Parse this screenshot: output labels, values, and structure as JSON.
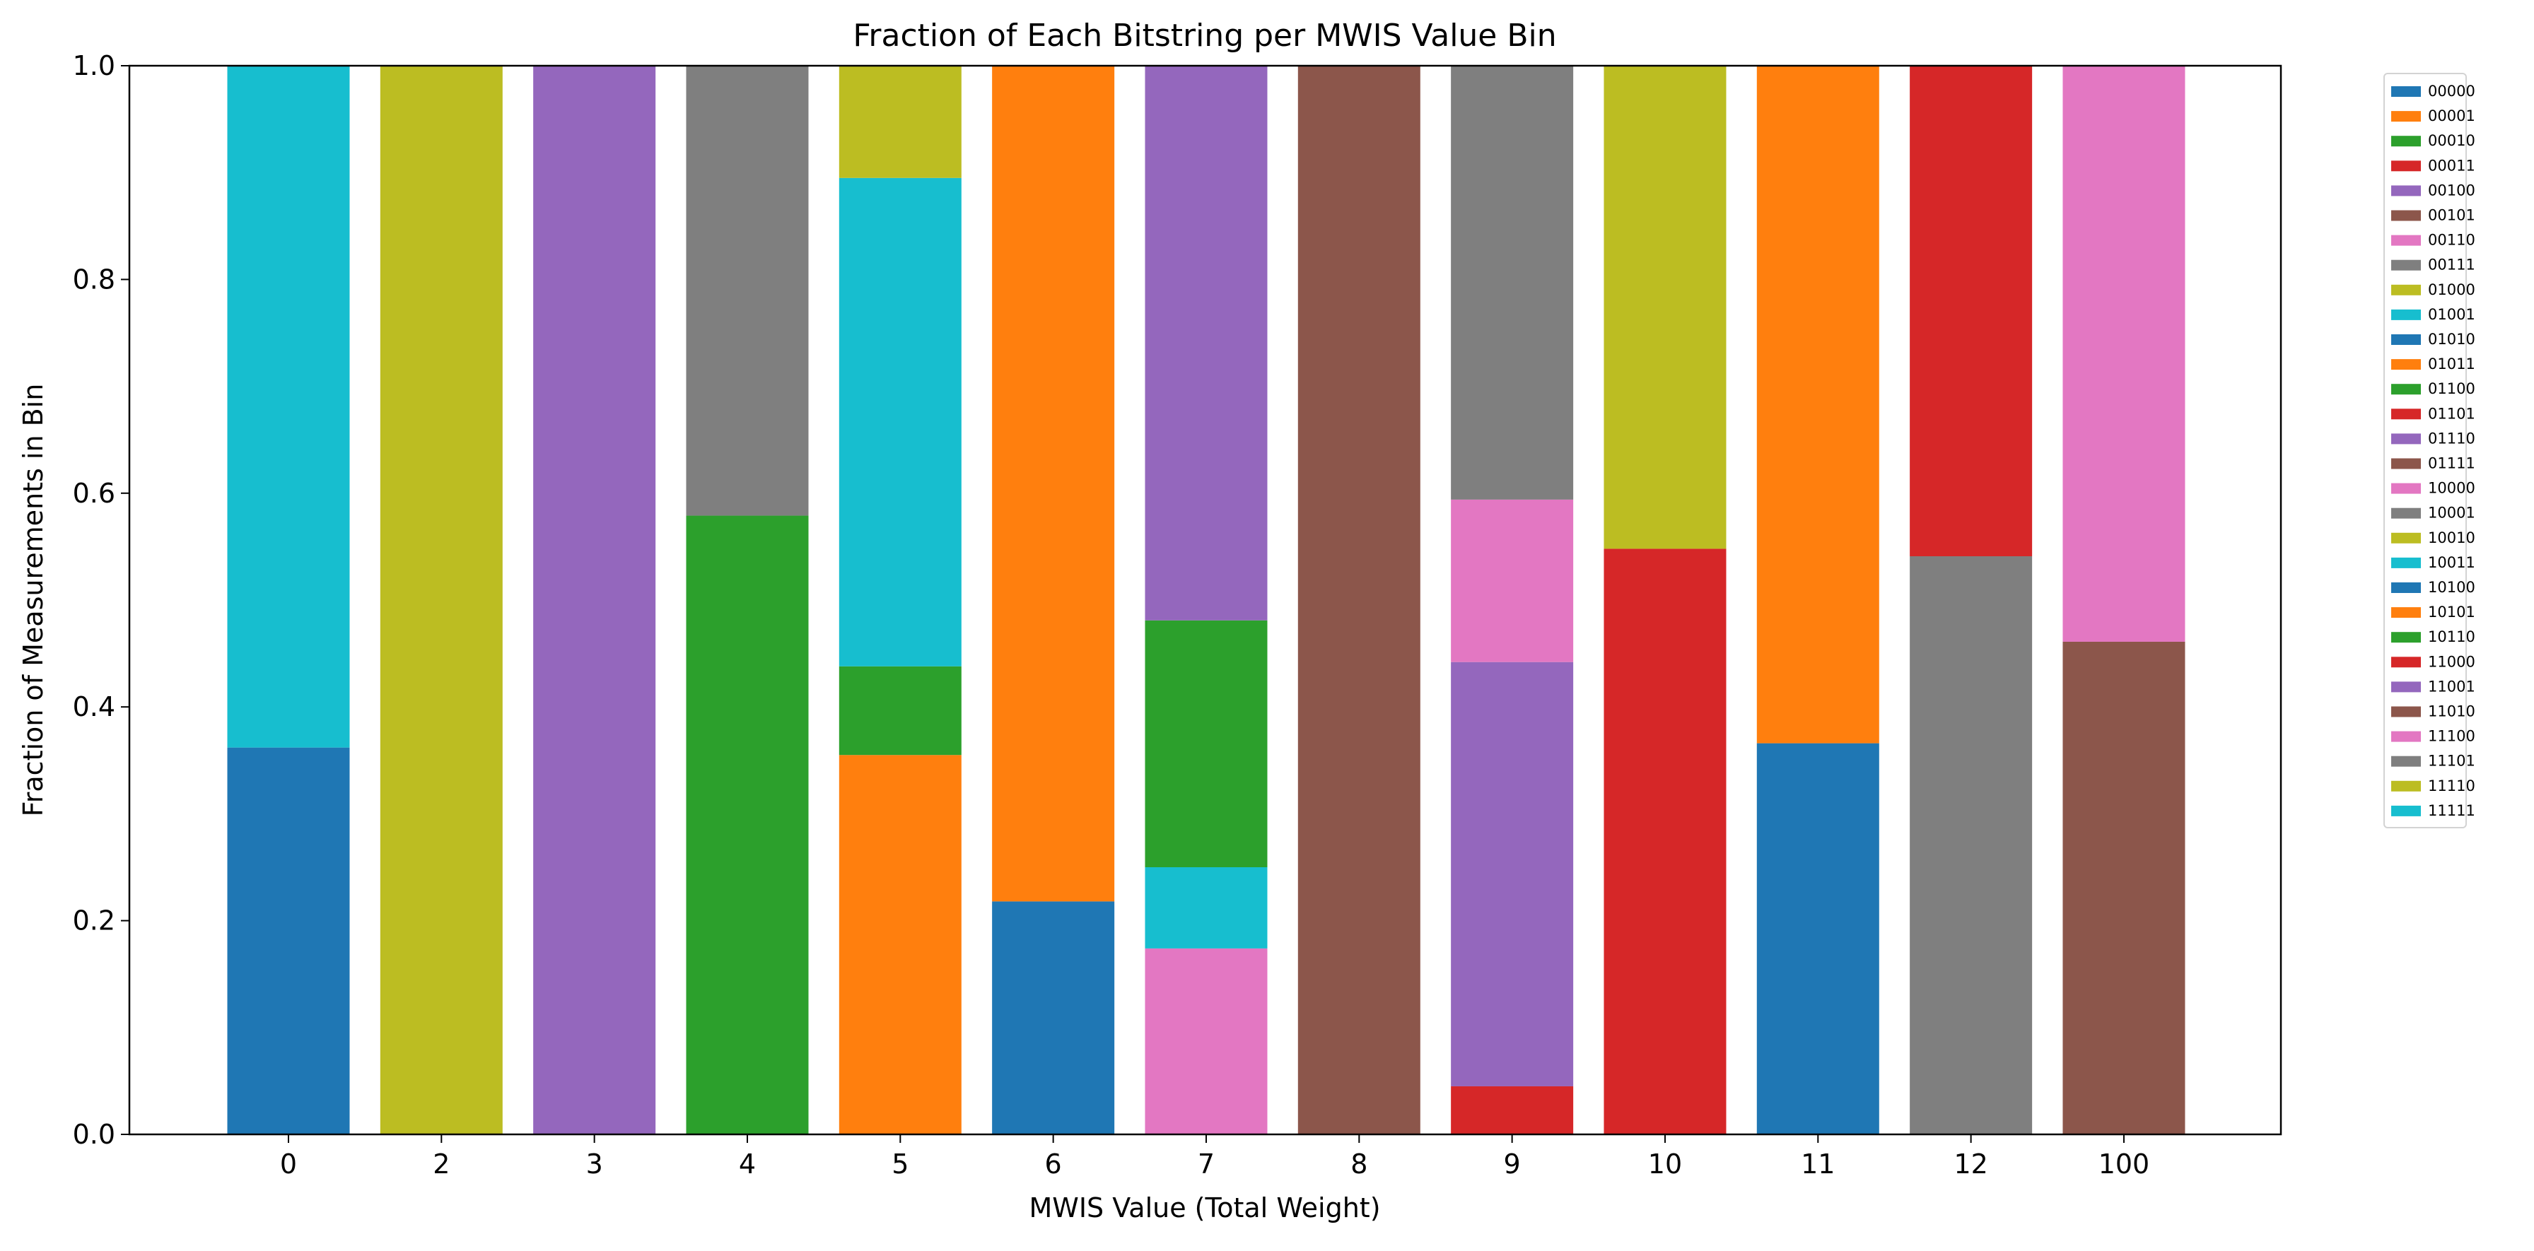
{
  "chart_data": {
    "type": "bar",
    "stacked": true,
    "title": "Fraction of Each Bitstring per MWIS Value Bin",
    "xlabel": "MWIS Value (Total Weight)",
    "ylabel": "Fraction of Measurements in Bin",
    "categories": [
      "0",
      "2",
      "3",
      "4",
      "5",
      "6",
      "7",
      "8",
      "9",
      "10",
      "11",
      "12",
      "100"
    ],
    "ylim": [
      0,
      1.0
    ],
    "yticks": [
      "0.0",
      "0.2",
      "0.4",
      "0.6",
      "0.8",
      "1.0"
    ],
    "grid": false,
    "legend_position": "outside-right",
    "series": [
      {
        "name": "00000",
        "color": "#1f77b4",
        "values": [
          0.362,
          0,
          0,
          0,
          0,
          0,
          0,
          0,
          0,
          0,
          0,
          0,
          0
        ]
      },
      {
        "name": "00001",
        "color": "#ff7f0e",
        "values": [
          0,
          0,
          0,
          0,
          0,
          0,
          0,
          0,
          0,
          0,
          0,
          0,
          0
        ]
      },
      {
        "name": "00010",
        "color": "#2ca02c",
        "values": [
          0,
          0,
          0,
          0,
          0,
          0,
          0,
          0,
          0,
          0,
          0,
          0,
          0
        ]
      },
      {
        "name": "00011",
        "color": "#d62728",
        "values": [
          0,
          0,
          0,
          0,
          0,
          0,
          0,
          0,
          0.045,
          0,
          0,
          0,
          0
        ]
      },
      {
        "name": "00100",
        "color": "#9467bd",
        "values": [
          0,
          0,
          0,
          0,
          0,
          0,
          0,
          0,
          0,
          0,
          0,
          0,
          0
        ]
      },
      {
        "name": "00101",
        "color": "#8c564b",
        "values": [
          0,
          0,
          0,
          0,
          0,
          0,
          0,
          0,
          0,
          0,
          0,
          0,
          0
        ]
      },
      {
        "name": "00110",
        "color": "#e377c2",
        "values": [
          0,
          0,
          0,
          0,
          0,
          0,
          0.174,
          0,
          0,
          0,
          0,
          0,
          0
        ]
      },
      {
        "name": "00111",
        "color": "#7f7f7f",
        "values": [
          0,
          0,
          0,
          0,
          0,
          0,
          0,
          0,
          0,
          0,
          0,
          0,
          0
        ]
      },
      {
        "name": "01000",
        "color": "#bcbd22",
        "values": [
          0,
          0,
          0,
          0,
          0,
          0,
          0,
          0,
          0,
          0,
          0,
          0,
          0
        ]
      },
      {
        "name": "01001",
        "color": "#17becf",
        "values": [
          0,
          0,
          0,
          0,
          0,
          0,
          0.076,
          0,
          0,
          0,
          0,
          0,
          0
        ]
      },
      {
        "name": "01010",
        "color": "#1f77b4",
        "values": [
          0,
          0,
          0,
          0,
          0,
          0.218,
          0,
          0,
          0,
          0,
          0,
          0,
          0
        ]
      },
      {
        "name": "01011",
        "color": "#ff7f0e",
        "values": [
          0,
          0,
          0,
          0,
          0.355,
          0,
          0,
          0,
          0,
          0,
          0,
          0,
          0
        ]
      },
      {
        "name": "01100",
        "color": "#2ca02c",
        "values": [
          0,
          0,
          0,
          0,
          0.083,
          0,
          0.231,
          0,
          0,
          0,
          0,
          0,
          0
        ]
      },
      {
        "name": "01101",
        "color": "#d62728",
        "values": [
          0,
          0,
          0,
          0,
          0,
          0,
          0,
          0,
          0,
          0.548,
          0,
          0,
          0
        ]
      },
      {
        "name": "01110",
        "color": "#9467bd",
        "values": [
          0,
          0,
          0,
          0,
          0,
          0,
          0,
          0,
          0.397,
          0,
          0,
          0,
          0
        ]
      },
      {
        "name": "01111",
        "color": "#8c564b",
        "values": [
          0,
          0,
          0,
          0,
          0,
          0,
          0,
          0,
          0,
          0,
          0,
          0,
          0.461
        ]
      },
      {
        "name": "10000",
        "color": "#e377c2",
        "values": [
          0,
          0,
          0,
          0,
          0,
          0,
          0,
          0,
          0,
          0,
          0,
          0,
          0
        ]
      },
      {
        "name": "10001",
        "color": "#7f7f7f",
        "values": [
          0,
          0,
          0,
          0,
          0,
          0,
          0,
          0,
          0,
          0,
          0,
          0.541,
          0
        ]
      },
      {
        "name": "10010",
        "color": "#bcbd22",
        "values": [
          0,
          0,
          0,
          0,
          0,
          0,
          0,
          0,
          0,
          0,
          0,
          0,
          0
        ]
      },
      {
        "name": "10011",
        "color": "#17becf",
        "values": [
          0,
          0,
          0,
          0,
          0.457,
          0,
          0,
          0,
          0,
          0,
          0,
          0,
          0
        ]
      },
      {
        "name": "10100",
        "color": "#1f77b4",
        "values": [
          0,
          0,
          0,
          0,
          0,
          0,
          0,
          0,
          0,
          0,
          0.366,
          0,
          0
        ]
      },
      {
        "name": "10101",
        "color": "#ff7f0e",
        "values": [
          0,
          0,
          0,
          0,
          0,
          0.782,
          0,
          0,
          0,
          0,
          0.634,
          0,
          0
        ]
      },
      {
        "name": "10110",
        "color": "#2ca02c",
        "values": [
          0,
          0,
          0,
          0.579,
          0,
          0,
          0,
          0,
          0,
          0,
          0,
          0,
          0
        ]
      },
      {
        "name": "11000",
        "color": "#d62728",
        "values": [
          0,
          0,
          0,
          0,
          0,
          0,
          0,
          0,
          0,
          0,
          0,
          0.459,
          0
        ]
      },
      {
        "name": "11001",
        "color": "#9467bd",
        "values": [
          0,
          0,
          1.0,
          0,
          0,
          0,
          0.519,
          0,
          0,
          0,
          0,
          0,
          0
        ]
      },
      {
        "name": "11010",
        "color": "#8c564b",
        "values": [
          0,
          0,
          0,
          0,
          0,
          0,
          0,
          1.0,
          0,
          0,
          0,
          0,
          0
        ]
      },
      {
        "name": "11100",
        "color": "#e377c2",
        "values": [
          0,
          0,
          0,
          0,
          0,
          0,
          0,
          0,
          0.152,
          0,
          0,
          0,
          0.539
        ]
      },
      {
        "name": "11101",
        "color": "#7f7f7f",
        "values": [
          0,
          0,
          0,
          0.421,
          0,
          0,
          0,
          0,
          0.406,
          0,
          0,
          0,
          0
        ]
      },
      {
        "name": "11110",
        "color": "#bcbd22",
        "values": [
          0,
          1.0,
          0,
          0,
          0.105,
          0,
          0,
          0,
          0,
          0.452,
          0,
          0,
          0
        ]
      },
      {
        "name": "11111",
        "color": "#17becf",
        "values": [
          0.638,
          0,
          0,
          0,
          0,
          0,
          0,
          0,
          0,
          0,
          0,
          0,
          0
        ]
      }
    ]
  }
}
